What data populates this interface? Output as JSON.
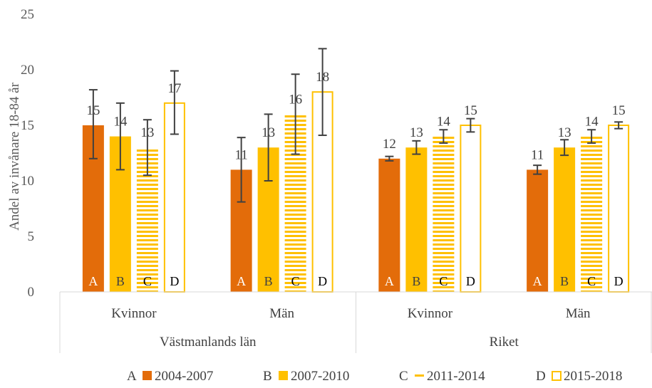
{
  "chart_data": {
    "type": "bar",
    "title": "",
    "ylabel": "Andel av invånare 18-84 år",
    "xlabel": "",
    "ylim": [
      0,
      25
    ],
    "yticks": [
      0,
      5,
      10,
      15,
      20,
      25
    ],
    "grid": false,
    "legend_position": "bottom",
    "groups": [
      {
        "name": "Västmanlands län",
        "categories": [
          {
            "name": "Kvinnor",
            "values": [
              15,
              14,
              13,
              17
            ],
            "errors": [
              [
                12,
                18.2
              ],
              [
                11,
                17
              ],
              [
                10.5,
                15.5
              ],
              [
                14.2,
                19.9
              ]
            ]
          },
          {
            "name": "Män",
            "values": [
              11,
              13,
              16,
              18
            ],
            "errors": [
              [
                8.1,
                13.9
              ],
              [
                10,
                16
              ],
              [
                12.4,
                19.6
              ],
              [
                14.1,
                21.9
              ]
            ]
          }
        ]
      },
      {
        "name": "Riket",
        "categories": [
          {
            "name": "Kvinnor",
            "values": [
              12,
              13,
              14,
              15
            ],
            "errors": [
              [
                11.8,
                12.2
              ],
              [
                12.4,
                13.6
              ],
              [
                13.4,
                14.6
              ],
              [
                14.4,
                15.6
              ]
            ]
          },
          {
            "name": "Män",
            "values": [
              11,
              13,
              14,
              15
            ],
            "errors": [
              [
                10.6,
                11.4
              ],
              [
                12.3,
                13.7
              ],
              [
                13.4,
                14.6
              ],
              [
                14.7,
                15.3
              ]
            ]
          }
        ]
      }
    ],
    "series": [
      {
        "letter": "A",
        "name": "2004-2007",
        "color": "#e36c0a",
        "style": "solid"
      },
      {
        "letter": "B",
        "name": "2007-2010",
        "color": "#ffc000",
        "style": "solid"
      },
      {
        "letter": "C",
        "name": "2011-2014",
        "color": "#ffc000",
        "style": "horizontal-stripes"
      },
      {
        "letter": "D",
        "name": "2015-2018",
        "color": "#ffc000",
        "style": "outline"
      }
    ],
    "error_bar_color": "#404040"
  }
}
